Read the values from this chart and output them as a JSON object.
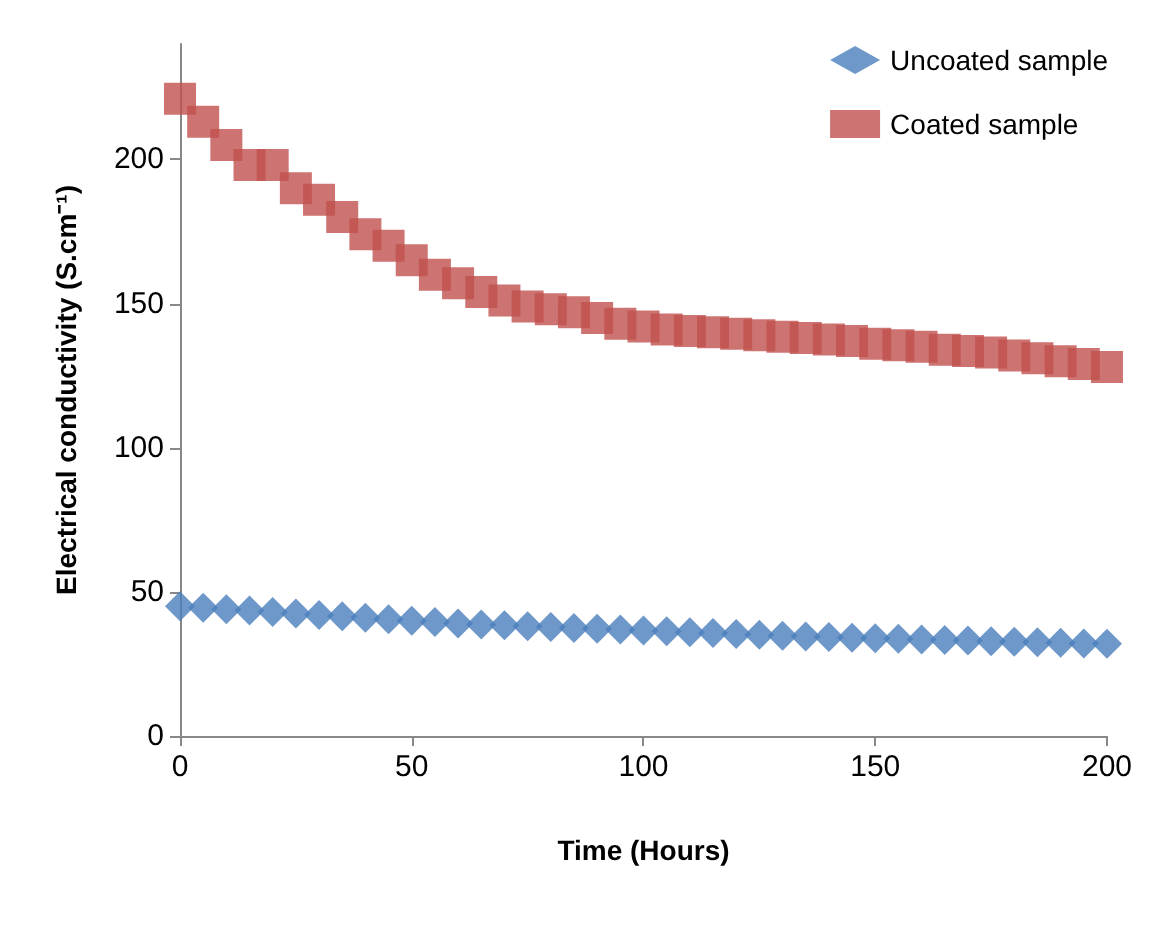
{
  "chart_data": {
    "type": "scatter",
    "xlabel": "Time (Hours)",
    "ylabel": "Electrical conductivity (S.cm⁻¹)",
    "x": [
      0,
      5,
      10,
      15,
      20,
      25,
      30,
      35,
      40,
      45,
      50,
      55,
      60,
      65,
      70,
      75,
      80,
      85,
      90,
      95,
      100,
      105,
      110,
      115,
      120,
      125,
      130,
      135,
      140,
      145,
      150,
      155,
      160,
      165,
      170,
      175,
      180,
      185,
      190,
      195,
      200
    ],
    "series": [
      {
        "name": "Uncoated sample",
        "color": "#4a7ebb",
        "marker": "diamond",
        "values": [
          45,
          44.5,
          44,
          43.5,
          43,
          42.5,
          42,
          41.5,
          41,
          40.5,
          40,
          39.5,
          39,
          38.7,
          38.4,
          38.1,
          37.8,
          37.5,
          37.2,
          36.9,
          36.6,
          36.3,
          36,
          35.7,
          35.4,
          35.1,
          34.8,
          34.5,
          34.3,
          34.1,
          33.9,
          33.7,
          33.5,
          33.3,
          33.1,
          32.9,
          32.7,
          32.5,
          32.3,
          32.1,
          32
        ]
      },
      {
        "name": "Coated sample",
        "color": "#c0504d",
        "marker": "square",
        "values": [
          221,
          213,
          205,
          198,
          198,
          190,
          186,
          180,
          174,
          170,
          165,
          160,
          157,
          154,
          151,
          149,
          148,
          147,
          145,
          143,
          142,
          141,
          140.5,
          140,
          139.5,
          139,
          138.5,
          138,
          137.5,
          137,
          136,
          135.5,
          135,
          134,
          133.5,
          133,
          132,
          131,
          130,
          129,
          128
        ]
      }
    ],
    "xlim": [
      0,
      200
    ],
    "xticks": [
      0,
      50,
      100,
      150,
      200
    ],
    "ylim": [
      0,
      240
    ],
    "yticks": [
      0,
      50,
      100,
      150,
      200
    ],
    "grid": false,
    "legend": "top right"
  }
}
